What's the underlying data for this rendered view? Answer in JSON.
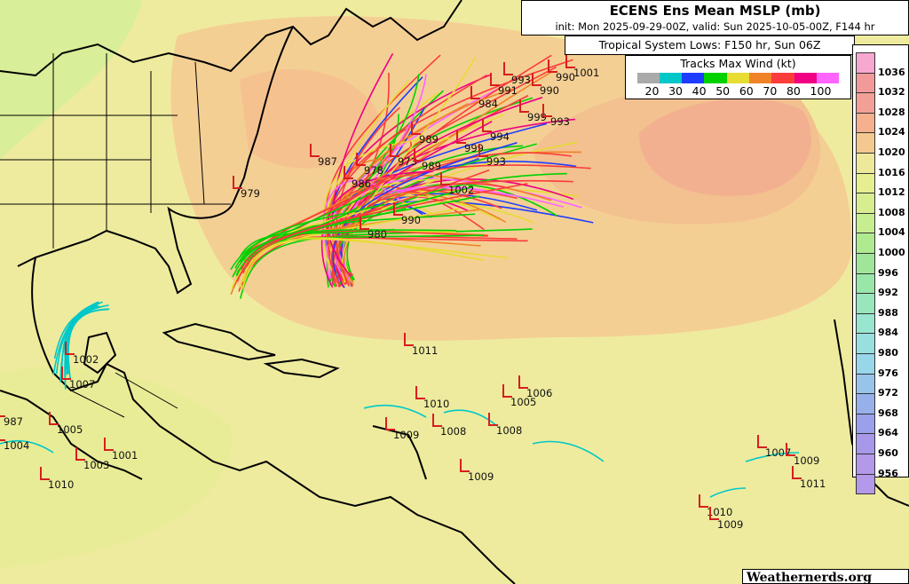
{
  "title": "ECENS Ens Mean MSLP (mb)",
  "subtitle": "init: Mon 2025-09-29-00Z, valid: Sun 2025-10-05-00Z, F144 hr",
  "system_lows_label": "Tropical System Lows: F150 hr, Sun 06Z",
  "wind_legend": {
    "title": "Tracks Max Wind (kt)",
    "colors": [
      "#aaaaaa",
      "#00c8c8",
      "#1e3cff",
      "#00d200",
      "#e6dc32",
      "#f08228",
      "#fa3c3c",
      "#f00082",
      "#ff64ff"
    ],
    "labels": [
      "20",
      "30",
      "40",
      "50",
      "60",
      "70",
      "80",
      "100"
    ]
  },
  "mslp_colorbar": {
    "levels": [
      "1036",
      "1032",
      "1028",
      "1024",
      "1020",
      "1016",
      "1012",
      "1008",
      "1004",
      "1000",
      "996",
      "992",
      "988",
      "984",
      "980",
      "976",
      "972",
      "968",
      "964",
      "960",
      "956"
    ],
    "colors": [
      "#f7a8d0",
      "#f29a9a",
      "#f2a096",
      "#f5b08e",
      "#f5c890",
      "#eee89a",
      "#e6ee90",
      "#d6ee90",
      "#c6ee90",
      "#b0ea90",
      "#a0e698",
      "#98e6a8",
      "#98e6bc",
      "#98e6d0",
      "#98e0e0",
      "#98d6ea",
      "#98c4ea",
      "#98b0ea",
      "#9aa0ea",
      "#a898ea",
      "#b498ea"
    ]
  },
  "lows": [
    "1001",
    "993",
    "990",
    "990",
    "991",
    "984",
    "999",
    "993",
    "989",
    "994",
    "999",
    "993",
    "987",
    "978",
    "973",
    "986",
    "989",
    "1002",
    "990",
    "980",
    "979",
    "1011",
    "1010",
    "1006",
    "1005",
    "1008",
    "1008",
    "1009",
    "1009",
    "1007",
    "1009",
    "1011",
    "1010",
    "1009",
    "1002",
    "1007",
    "1005",
    "1004",
    "1010",
    "1003",
    "1001",
    "987"
  ],
  "watermark": "Weathernerds.org"
}
